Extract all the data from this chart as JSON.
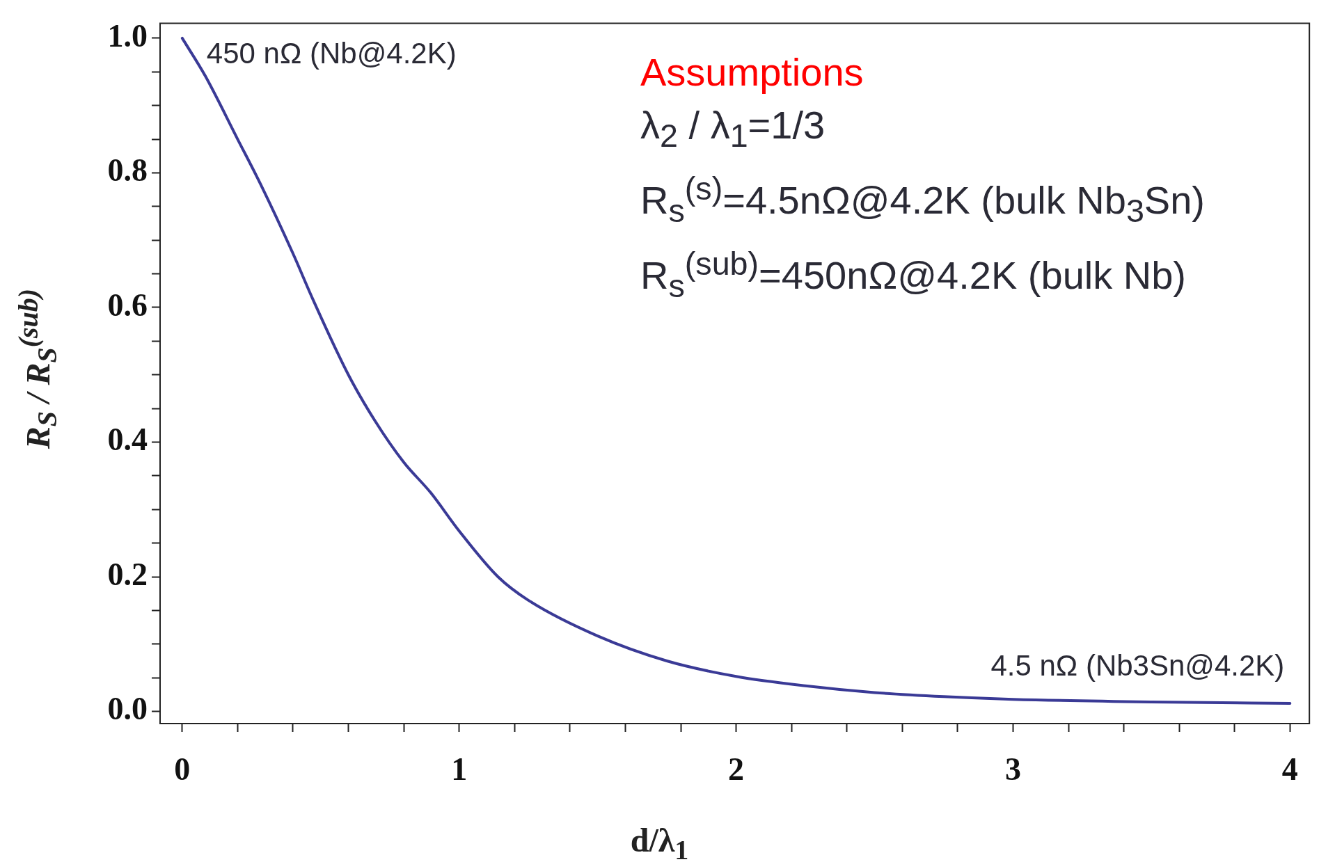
{
  "chart_data": {
    "type": "line",
    "xlabel": "d/λ$_{1}$",
    "ylabel": "R$_{S}$ / R$_{S}$$^{(sub)}$",
    "x": [
      0,
      0.083,
      0.2,
      0.283,
      0.4,
      0.473,
      0.6,
      0.697,
      0.8,
      0.897,
      1,
      1.14,
      1.25,
      1.5,
      1.75,
      2,
      2.25,
      2.5,
      2.75,
      3,
      3.5,
      4
    ],
    "series": [
      {
        "color": "#3a3a96",
        "values": [
          1,
          0.944,
          0.85,
          0.783,
          0.68,
          0.611,
          0.5,
          0.431,
          0.37,
          0.325,
          0.268,
          0.2,
          0.165,
          0.112,
          0.075,
          0.052,
          0.038,
          0.028,
          0.022,
          0.018,
          0.014,
          0.012
        ]
      }
    ],
    "xlim": [
      -0.08,
      4.07
    ],
    "ylim": [
      -0.018,
      1.022
    ],
    "xticks": [
      0,
      {
        "value": 0.2,
        "label": null
      },
      {
        "value": 0.4,
        "label": null
      },
      {
        "value": 0.6,
        "label": null
      },
      {
        "value": 0.8,
        "label": null
      },
      1,
      {
        "value": 1.2,
        "label": null
      },
      {
        "value": 1.4,
        "label": null
      },
      {
        "value": 1.6,
        "label": null
      },
      {
        "value": 1.8,
        "label": null
      },
      2,
      {
        "value": 2.2,
        "label": null
      },
      {
        "value": 2.4,
        "label": null
      },
      {
        "value": 2.6,
        "label": null
      },
      {
        "value": 2.8,
        "label": null
      },
      3,
      {
        "value": 3.2,
        "label": null
      },
      {
        "value": 3.4,
        "label": null
      },
      {
        "value": 3.6,
        "label": null
      },
      {
        "value": 3.8,
        "label": null
      },
      4
    ],
    "yticks": [
      {
        "value": 0,
        "label": "0.0"
      },
      {
        "value": 0.05,
        "label": null
      },
      {
        "value": 0.1,
        "label": null
      },
      {
        "value": 0.15,
        "label": null
      },
      {
        "value": 0.2,
        "label": "0.2"
      },
      {
        "value": 0.25,
        "label": null
      },
      {
        "value": 0.3,
        "label": null
      },
      {
        "value": 0.35,
        "label": null
      },
      {
        "value": 0.4,
        "label": "0.4"
      },
      {
        "value": 0.45,
        "label": null
      },
      {
        "value": 0.5,
        "label": null
      },
      {
        "value": 0.55,
        "label": null
      },
      {
        "value": 0.6,
        "label": "0.6"
      },
      {
        "value": 0.65,
        "label": null
      },
      {
        "value": 0.7,
        "label": null
      },
      {
        "value": 0.75,
        "label": null
      },
      {
        "value": 0.8,
        "label": "0.8"
      },
      {
        "value": 0.85,
        "label": null
      },
      {
        "value": 0.9,
        "label": null
      },
      {
        "value": 0.95,
        "label": null
      },
      {
        "value": 1,
        "label": "1.0"
      }
    ],
    "grid": false,
    "legend": false,
    "marker": "none",
    "line_style": "solid",
    "annotations": [
      {
        "text": "450 nΩ (Nb@4.2K)",
        "x": 0,
        "y": 1
      },
      {
        "text": "4.5 nΩ (Nb3Sn@4.2K)",
        "x": 4,
        "y": 0.012
      },
      "Assumptions",
      "λ$_{2}$ / λ$_{1}$=1/3",
      "R$_{s}$$^{(s)}$=4.5nΩ@4.2K (bulk Nb$_{3}$Sn)",
      "R$_{s}$$^{(sub)}$=450nΩ@4.2K (bulk Nb)"
    ]
  }
}
